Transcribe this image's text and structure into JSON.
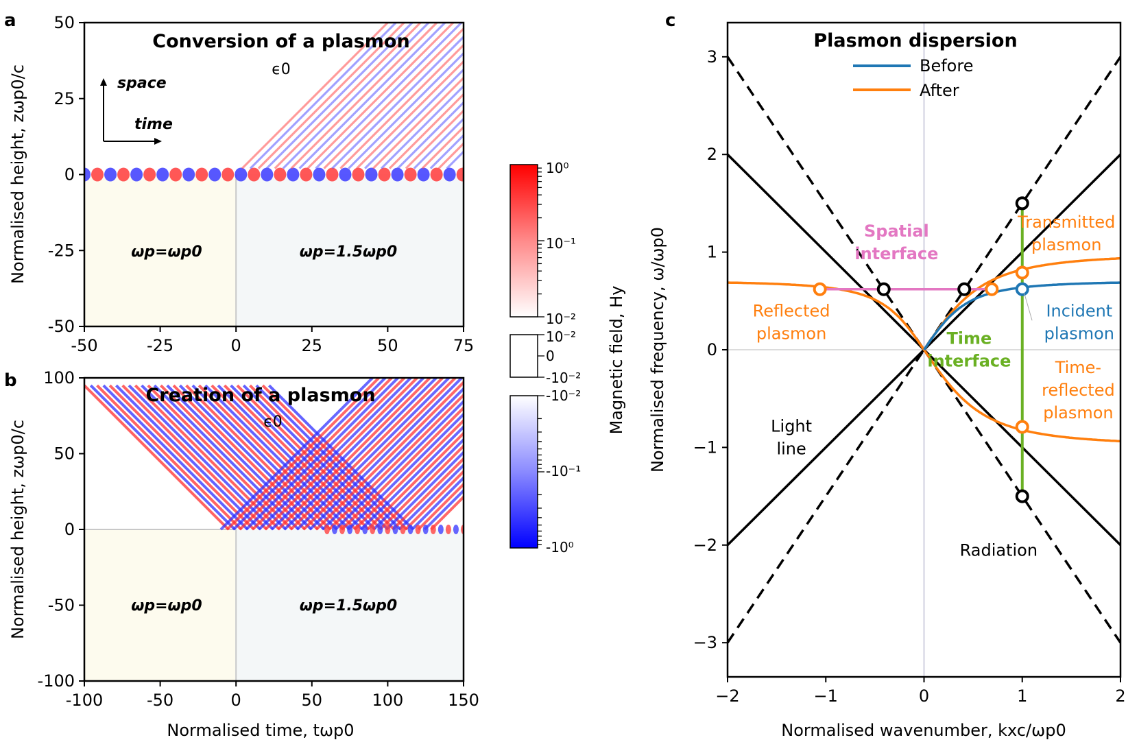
{
  "figure": {
    "panel_a": "a",
    "panel_b": "b",
    "panel_c": "c"
  },
  "chart_data": [
    {
      "type": "heatmap",
      "panel": "a",
      "title": "Conversion of a plasmon",
      "medium_label": "ϵ0",
      "arrow_space": "space",
      "arrow_time": "time",
      "region_left": "ωp=ωp0",
      "region_right": "ωp=1.5ωp0",
      "ylabel": "Normalised height,  zωp0/c",
      "xlim": [
        -50,
        75
      ],
      "ylim": [
        -50,
        50
      ],
      "xticks": [
        "-50",
        "-25",
        "0",
        "25",
        "50",
        "75"
      ],
      "yticks": [
        "50",
        "25",
        "0",
        "-25",
        "-50"
      ],
      "interface_time": 0
    },
    {
      "type": "heatmap",
      "panel": "b",
      "title": "Creation of a plasmon",
      "medium_label": "ϵ0",
      "region_left": "ωp=ωp0",
      "region_right": "ωp=1.5ωp0",
      "xlabel": "Normalised time, tωp0",
      "ylabel": "Normalised height,  zωp0/c",
      "xlim": [
        -100,
        150
      ],
      "ylim": [
        -100,
        100
      ],
      "xticks": [
        "-100",
        "-50",
        "0",
        "50",
        "100",
        "150"
      ],
      "yticks": [
        "100",
        "50",
        "0",
        "-50",
        "-100"
      ],
      "interface_time": 0
    },
    {
      "type": "colorbar",
      "label": "Magnetic field, Hy",
      "pos_ticks": [
        "10⁰",
        "10⁻¹",
        "10⁻²"
      ],
      "lin_ticks": [
        "10⁻²",
        "0",
        "-10⁻²"
      ],
      "neg_ticks": [
        "-10⁻²",
        "-10⁻¹",
        "-10⁰"
      ],
      "colors": {
        "positive": "#ff0000",
        "negative": "#0000ff"
      }
    },
    {
      "type": "line",
      "panel": "c",
      "title": "Plasmon dispersion",
      "xlabel": "Normalised wavenumber, kxc/ωp0",
      "ylabel": "Normalised frequency, ω/ωp0",
      "xlim": [
        -2,
        2
      ],
      "ylim": [
        -3.35,
        3.35
      ],
      "xticks": [
        "−2",
        "−1",
        "0",
        "1",
        "2"
      ],
      "yticks": [
        "3",
        "2",
        "1",
        "0",
        "−1",
        "−2",
        "−3"
      ],
      "legend": [
        {
          "label": "Before",
          "color": "#1f77b4"
        },
        {
          "label": "After",
          "color": "#ff7f0e"
        }
      ],
      "legend_position": "top-center",
      "light_lines_solid": {
        "slope": 1
      },
      "light_lines_dashed": {
        "slope": 1.5
      },
      "plasmon_before_asymptote": 0.7071,
      "plasmon_after_asymptote": 1.0607,
      "spatial_interface": {
        "x": [
          -1.06,
          0.7
        ],
        "y": 0.62,
        "color": "#e377c2"
      },
      "time_interface": {
        "x": 1,
        "y": [
          -1.5,
          1.5
        ],
        "color": "#6ab023"
      },
      "points_black": [
        [
          -0.41,
          0.62
        ],
        [
          0.41,
          0.62
        ],
        [
          1,
          1.5
        ],
        [
          1,
          -1.5
        ],
        [
          0,
          0
        ]
      ],
      "points_orange": [
        [
          -1.06,
          0.62
        ],
        [
          0.69,
          0.62
        ],
        [
          1,
          0.79
        ],
        [
          1,
          -0.79
        ]
      ],
      "points_blue": [
        [
          1,
          0.62
        ]
      ],
      "annotations": {
        "spatial_interface": "Spatial\ninterface",
        "time_interface": "Time\ninterface",
        "transmitted": "Transmitted\nplasmon",
        "reflected": "Reflected\nplasmon",
        "incident": "Incident\nplasmon",
        "time_reflected": "Time-\nreflected\nplasmon",
        "light_line": "Light\nline",
        "radiation": "Radiation"
      },
      "annotation_colors": {
        "spatial": "#e377c2",
        "time": "#6ab023",
        "after": "#ff7f0e",
        "before": "#1f77b4"
      }
    }
  ]
}
